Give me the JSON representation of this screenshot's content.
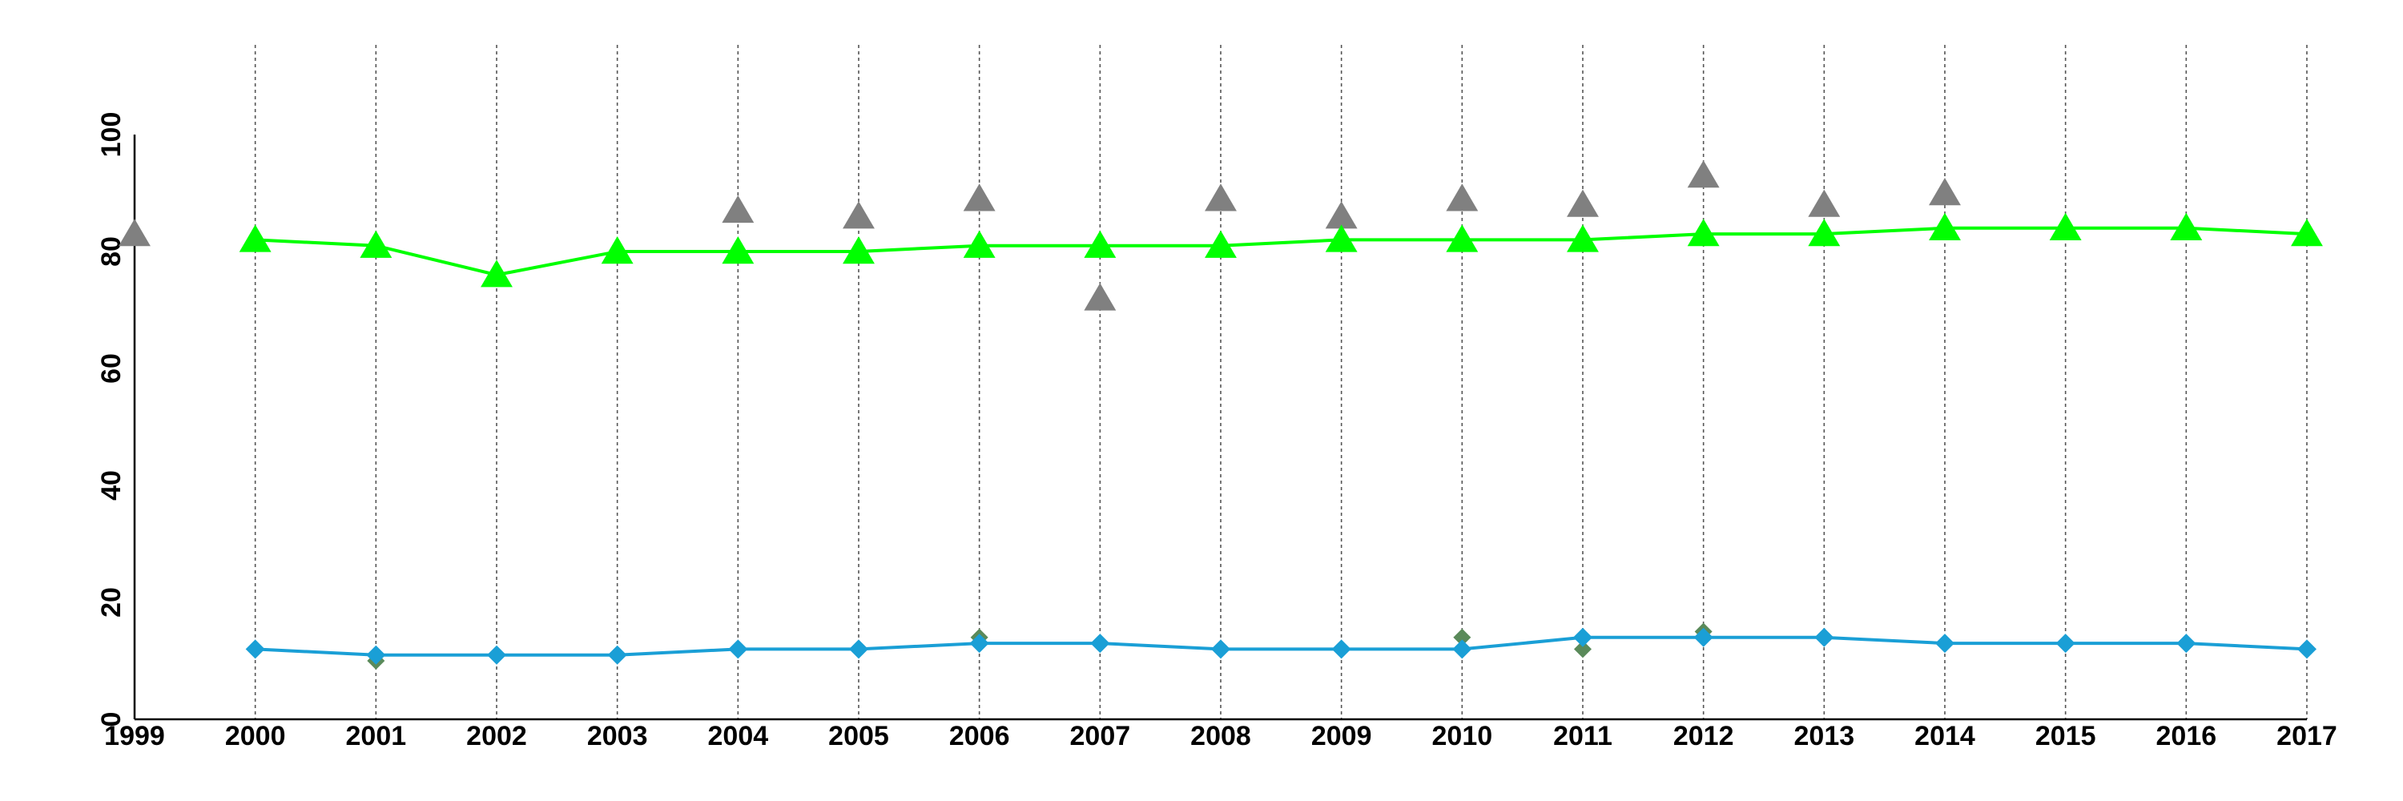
{
  "chart_data": {
    "type": "line",
    "title": "",
    "xlabel": "",
    "ylabel": "",
    "xlim": [
      1999,
      2017
    ],
    "ylim": [
      0,
      100
    ],
    "x_ticks": [
      1999,
      2000,
      2001,
      2002,
      2003,
      2004,
      2005,
      2006,
      2007,
      2008,
      2009,
      2010,
      2011,
      2012,
      2013,
      2014,
      2015,
      2016,
      2017
    ],
    "y_ticks": [
      0,
      20,
      40,
      60,
      80,
      100
    ],
    "vertical_gridlines": "dotted, at each year 2000-2017",
    "horizontal_gridlines": false,
    "legend": "none",
    "series": [
      {
        "kind": "line",
        "marker": "triangle",
        "color": "#00ff00",
        "x": [
          2000,
          2001,
          2002,
          2003,
          2004,
          2005,
          2006,
          2007,
          2008,
          2009,
          2010,
          2011,
          2012,
          2013,
          2014,
          2015,
          2016,
          2017
        ],
        "values": [
          82,
          81,
          76,
          80,
          80,
          80,
          81,
          81,
          81,
          82,
          82,
          82,
          83,
          83,
          84,
          84,
          84,
          83
        ]
      },
      {
        "kind": "line",
        "marker": "diamond",
        "color": "#1a9fd6",
        "x": [
          2000,
          2001,
          2002,
          2003,
          2004,
          2005,
          2006,
          2007,
          2008,
          2009,
          2010,
          2011,
          2012,
          2013,
          2014,
          2015,
          2016,
          2017
        ],
        "values": [
          12,
          11,
          11,
          11,
          12,
          12,
          13,
          13,
          12,
          12,
          12,
          14,
          14,
          14,
          13,
          13,
          13,
          12
        ]
      },
      {
        "kind": "scatter",
        "marker": "triangle",
        "color": "#808080",
        "x": [
          1999,
          2004,
          2005,
          2006,
          2007,
          2008,
          2009,
          2010,
          2011,
          2012,
          2013,
          2014
        ],
        "values": [
          83,
          87,
          86,
          89,
          72,
          89,
          86,
          89,
          88,
          93,
          88,
          90
        ]
      },
      {
        "kind": "scatter",
        "marker": "diamond",
        "color": "#5a8a5a",
        "x": [
          2001,
          2006,
          2010,
          2011,
          2012
        ],
        "values": [
          10,
          14,
          14,
          12,
          15
        ]
      }
    ]
  }
}
